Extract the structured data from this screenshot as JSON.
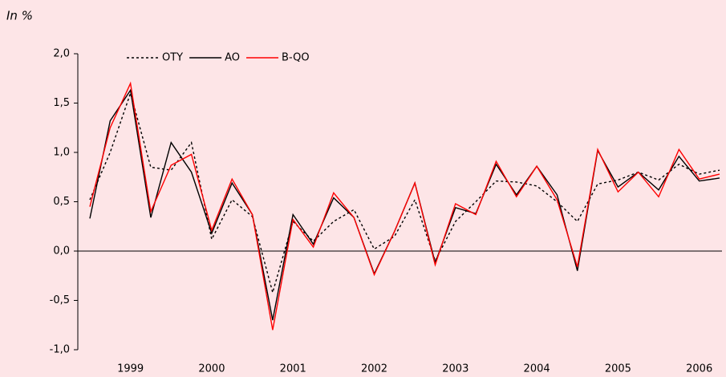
{
  "chart_data": {
    "type": "line",
    "unit_label": "In %",
    "categories": [
      null,
      null,
      "1999",
      null,
      null,
      null,
      "2000",
      null,
      null,
      null,
      "2001",
      null,
      null,
      null,
      "2002",
      null,
      null,
      null,
      "2003",
      null,
      null,
      null,
      "2004",
      null,
      null,
      null,
      "2005",
      null,
      null,
      null,
      "2006",
      null
    ],
    "series": [
      {
        "name": "OTY",
        "color": "#000000",
        "dash": true,
        "values": [
          0.52,
          1.0,
          1.6,
          0.85,
          0.82,
          1.1,
          0.12,
          0.52,
          0.35,
          -0.42,
          0.3,
          0.1,
          0.3,
          0.42,
          0.02,
          0.15,
          0.52,
          -0.1,
          0.3,
          0.5,
          0.71,
          0.7,
          0.66,
          0.5,
          0.3,
          0.68,
          0.72,
          0.8,
          0.72,
          0.88,
          0.78,
          0.82
        ]
      },
      {
        "name": "AO",
        "color": "#000000",
        "dash": false,
        "values": [
          0.33,
          1.32,
          1.63,
          0.34,
          1.1,
          0.8,
          0.18,
          0.69,
          0.37,
          -0.7,
          0.37,
          0.07,
          0.54,
          0.34,
          -0.23,
          0.2,
          0.69,
          -0.12,
          0.44,
          0.38,
          0.88,
          0.57,
          0.86,
          0.57,
          -0.2,
          1.02,
          0.65,
          0.8,
          0.62,
          0.96,
          0.71,
          0.74
        ]
      },
      {
        "name": "B-QO",
        "color": "#ff0000",
        "dash": false,
        "values": [
          0.45,
          1.25,
          1.7,
          0.4,
          0.87,
          0.98,
          0.21,
          0.73,
          0.37,
          -0.8,
          0.32,
          0.04,
          0.59,
          0.34,
          -0.24,
          0.2,
          0.69,
          -0.14,
          0.48,
          0.37,
          0.91,
          0.55,
          0.86,
          0.52,
          -0.16,
          1.03,
          0.6,
          0.8,
          0.55,
          1.03,
          0.73,
          0.78
        ]
      }
    ],
    "ylim": [
      -1,
      2
    ],
    "yticks": [
      {
        "value": -1,
        "label": "-1,0"
      },
      {
        "value": -0.5,
        "label": "-0,5"
      },
      {
        "value": 0,
        "label": "0,0"
      },
      {
        "value": 0.5,
        "label": "0,5"
      },
      {
        "value": 1,
        "label": "1,0"
      },
      {
        "value": 1.5,
        "label": "1,5"
      },
      {
        "value": 2,
        "label": "2,0"
      }
    ],
    "legend": "top-left",
    "grid": false
  }
}
